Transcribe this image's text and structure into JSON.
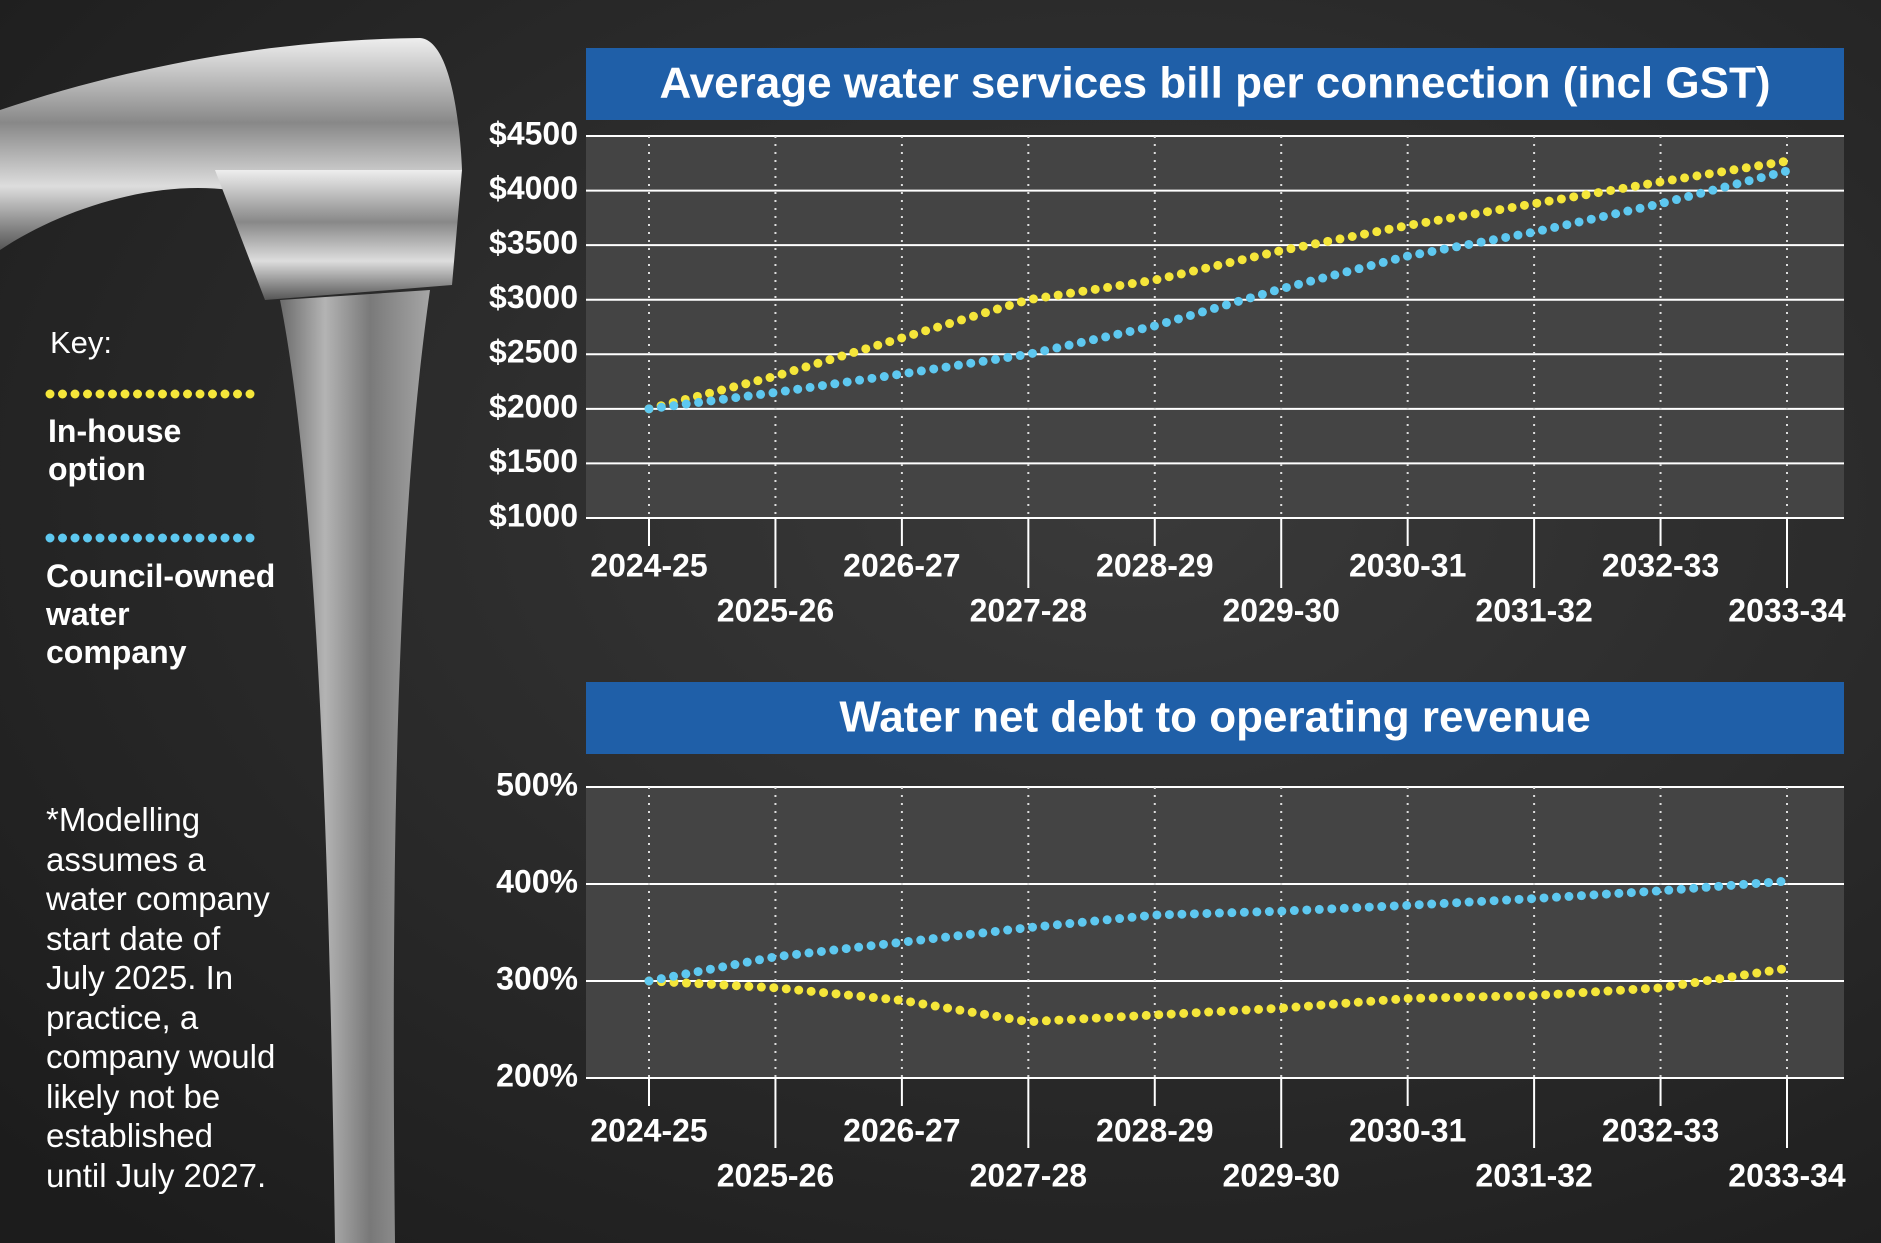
{
  "key": {
    "title": "Key:"
  },
  "note": "*Modelling assumes a water company start date of July 2025. In practice, a company would likely not be established until July 2027.",
  "chart_data": [
    {
      "type": "line",
      "title": "Average water services bill per connection (incl GST)",
      "categories": [
        "2024-25",
        "2025-26",
        "2026-27",
        "2027-28",
        "2028-29",
        "2029-30",
        "2030-31",
        "2031-32",
        "2032-33",
        "2033-34"
      ],
      "series": [
        {
          "name": "In-house option",
          "color": "#f5e63a",
          "values": [
            2000,
            2300,
            2650,
            3000,
            3180,
            3450,
            3680,
            3880,
            4080,
            4270
          ]
        },
        {
          "name": "Council-owned water company",
          "color": "#5ec8f0",
          "values": [
            2000,
            2150,
            2320,
            2500,
            2760,
            3100,
            3400,
            3620,
            3880,
            4180
          ]
        }
      ],
      "ylim": [
        1000,
        4500
      ],
      "yticks": [
        {
          "value": 1000,
          "label": "$1000"
        },
        {
          "value": 1500,
          "label": "$1500"
        },
        {
          "value": 2000,
          "label": "$2000"
        },
        {
          "value": 2500,
          "label": "$2500"
        },
        {
          "value": 3000,
          "label": "$3000"
        },
        {
          "value": 3500,
          "label": "$3500"
        },
        {
          "value": 4000,
          "label": "$4000"
        },
        {
          "value": 4500,
          "label": "$4500"
        }
      ],
      "grid": true
    },
    {
      "type": "line",
      "title": "Water net debt to operating revenue",
      "categories": [
        "2024-25",
        "2025-26",
        "2026-27",
        "2027-28",
        "2028-29",
        "2029-30",
        "2030-31",
        "2031-32",
        "2032-33",
        "2033-34"
      ],
      "series": [
        {
          "name": "In-house option",
          "color": "#f5e63a",
          "values": [
            300,
            293,
            280,
            258,
            265,
            272,
            282,
            285,
            293,
            313
          ]
        },
        {
          "name": "Council-owned water company",
          "color": "#5ec8f0",
          "values": [
            300,
            325,
            340,
            355,
            368,
            372,
            378,
            385,
            393,
            403
          ]
        }
      ],
      "ylim": [
        200,
        500
      ],
      "yticks": [
        {
          "value": 200,
          "label": "200%"
        },
        {
          "value": 300,
          "label": "300%"
        },
        {
          "value": 400,
          "label": "400%"
        },
        {
          "value": 500,
          "label": "500%"
        }
      ],
      "grid": true
    }
  ]
}
